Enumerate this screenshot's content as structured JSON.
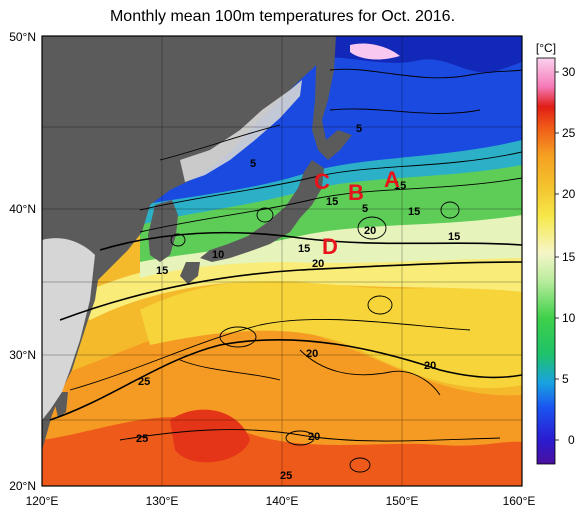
{
  "title": "Monthly mean 100m temperatures for Oct. 2016.",
  "colorbar": {
    "unit": "[°C]",
    "ticks": [
      "30",
      "25",
      "20",
      "15",
      "10",
      "5",
      "0"
    ]
  },
  "axes": {
    "lon_ticks": [
      "120°E",
      "130°E",
      "140°E",
      "150°E",
      "160°E"
    ],
    "lat_ticks": [
      "50°N",
      "40°N",
      "30°N",
      "20°N"
    ]
  },
  "markers": [
    "A",
    "B",
    "C",
    "D"
  ],
  "contour_labels": [
    "5",
    "5",
    "5",
    "10",
    "15",
    "15",
    "15",
    "15",
    "15",
    "15",
    "20",
    "20",
    "20",
    "20",
    "20",
    "25",
    "25",
    "25"
  ]
}
